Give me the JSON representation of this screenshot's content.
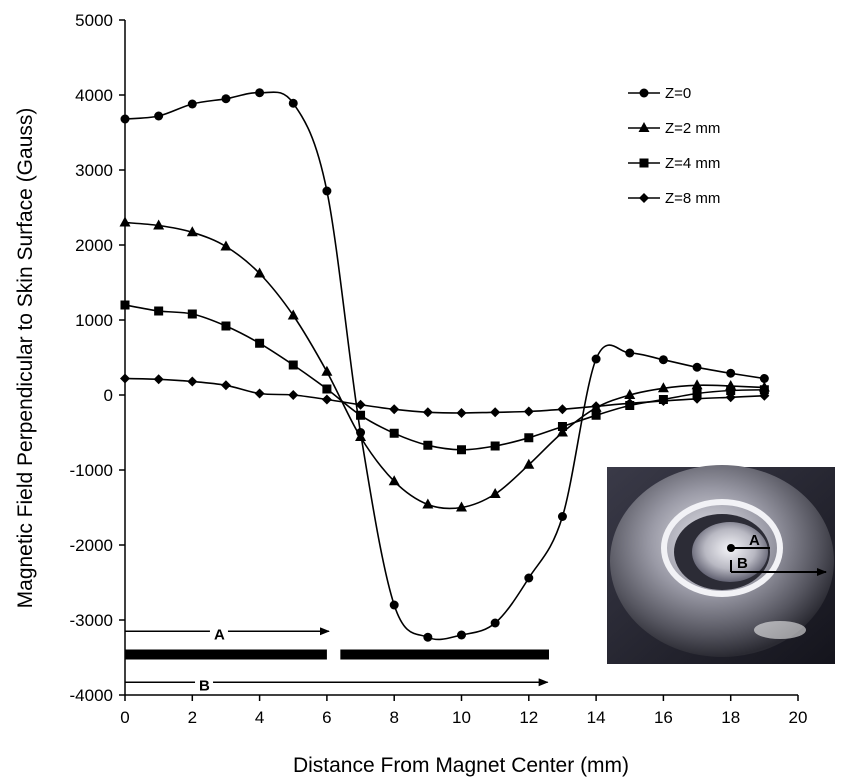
{
  "chart_data": {
    "type": "line",
    "title": "",
    "xlabel": "Distance From Magnet Center (mm)",
    "ylabel": "Magnetic Field Perpendicular to Skin Surface (Gauss)",
    "xlim": [
      0,
      20
    ],
    "ylim": [
      -4000,
      5000
    ],
    "xticks": [
      0,
      2,
      4,
      6,
      8,
      10,
      12,
      14,
      16,
      18,
      20
    ],
    "yticks": [
      -4000,
      -3000,
      -2000,
      -1000,
      0,
      1000,
      2000,
      3000,
      4000,
      5000
    ],
    "grid": false,
    "legend_position": "top-right",
    "series": [
      {
        "name": "Z=0",
        "marker": "circle",
        "x": [
          0,
          1,
          2,
          3,
          4,
          5,
          6,
          7,
          8,
          9,
          10,
          11,
          12,
          13,
          14,
          15,
          16,
          17,
          18,
          19
        ],
        "y": [
          3680,
          3720,
          3880,
          3950,
          4030,
          3890,
          2720,
          -500,
          -2800,
          -3230,
          -3200,
          -3040,
          -2440,
          -1620,
          480,
          560,
          470,
          370,
          290,
          220
        ]
      },
      {
        "name": "Z=2 mm",
        "marker": "triangle",
        "x": [
          0,
          1,
          2,
          3,
          4,
          5,
          6,
          7,
          8,
          9,
          10,
          11,
          12,
          13,
          14,
          15,
          16,
          17,
          18,
          19
        ],
        "y": [
          2300,
          2260,
          2170,
          1980,
          1620,
          1060,
          310,
          -560,
          -1150,
          -1460,
          -1500,
          -1320,
          -930,
          -500,
          -170,
          0,
          90,
          130,
          120,
          100
        ]
      },
      {
        "name": "Z=4 mm",
        "marker": "square",
        "x": [
          0,
          1,
          2,
          3,
          4,
          5,
          6,
          7,
          8,
          9,
          10,
          11,
          12,
          13,
          14,
          15,
          16,
          17,
          18,
          19
        ],
        "y": [
          1200,
          1120,
          1080,
          920,
          690,
          400,
          80,
          -270,
          -510,
          -670,
          -730,
          -680,
          -570,
          -420,
          -270,
          -140,
          -60,
          20,
          60,
          70
        ]
      },
      {
        "name": "Z=8 mm",
        "marker": "diamond",
        "x": [
          0,
          1,
          2,
          3,
          4,
          5,
          6,
          7,
          8,
          9,
          10,
          11,
          12,
          13,
          14,
          15,
          16,
          17,
          18,
          19
        ],
        "y": [
          220,
          210,
          180,
          130,
          20,
          0,
          -60,
          -130,
          -190,
          -230,
          -240,
          -230,
          -220,
          -190,
          -150,
          -110,
          -80,
          -50,
          -30,
          -10
        ]
      }
    ],
    "annotations": {
      "arrow_A": {
        "label": "A",
        "x_start": 0,
        "x_end": 6,
        "y": -3150
      },
      "arrow_B": {
        "label": "B",
        "x_start": 0,
        "x_end": 12.5,
        "y": -3830
      },
      "bars": [
        {
          "x_start": 0,
          "x_end": 6,
          "y": -3460
        },
        {
          "x_start": 6.4,
          "x_end": 12.6,
          "y": -3460
        }
      ]
    },
    "inset_photo": {
      "labels": [
        "A",
        "B"
      ]
    }
  },
  "colors": {
    "line": "#000000",
    "background": "#ffffff"
  }
}
